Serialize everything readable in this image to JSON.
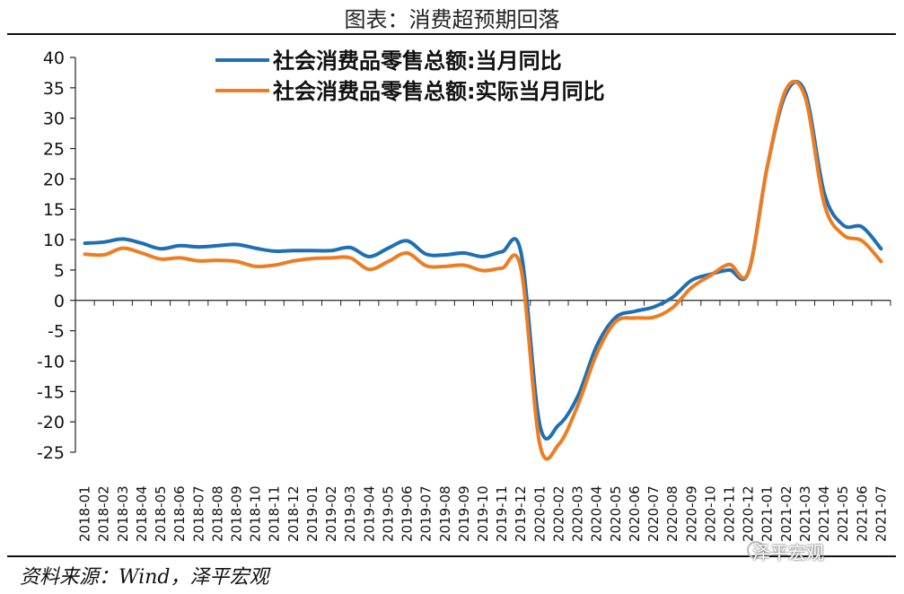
{
  "title": "图表：消费超预期回落",
  "source": "资料来源：Wind，泽平宏观",
  "watermark": "泽平宏观",
  "chart_data": {
    "type": "line",
    "title": "图表：消费超预期回落",
    "xlabel": "",
    "ylabel": "",
    "ylim": [
      -25,
      40
    ],
    "yticks": [
      40,
      35,
      30,
      25,
      20,
      15,
      10,
      5,
      0,
      -5,
      -10,
      -15,
      -20,
      -25
    ],
    "grid": false,
    "legend_position": "top-center",
    "categories": [
      "2018-01",
      "2018-02",
      "2018-03",
      "2018-04",
      "2018-05",
      "2018-06",
      "2018-07",
      "2018-08",
      "2018-09",
      "2018-10",
      "2018-11",
      "2018-12",
      "2019-01",
      "2019-02",
      "2019-03",
      "2019-04",
      "2019-05",
      "2019-06",
      "2019-07",
      "2019-08",
      "2019-09",
      "2019-10",
      "2019-11",
      "2019-12",
      "2020-01",
      "2020-02",
      "2020-03",
      "2020-04",
      "2020-05",
      "2020-06",
      "2020-07",
      "2020-08",
      "2020-09",
      "2020-10",
      "2020-11",
      "2020-12",
      "2021-01",
      "2021-02",
      "2021-03",
      "2021-04",
      "2021-05",
      "2021-06",
      "2021-07"
    ],
    "series": [
      {
        "name": "社会消费品零售总额:当月同比",
        "color": "#1F6FB5",
        "values": [
          9.4,
          9.6,
          10.1,
          9.4,
          8.5,
          9.0,
          8.8,
          9.0,
          9.2,
          8.6,
          8.1,
          8.2,
          8.2,
          8.2,
          8.7,
          7.2,
          8.6,
          9.8,
          7.6,
          7.5,
          7.8,
          7.2,
          8.0,
          8.0,
          -20.5,
          -20.5,
          -15.8,
          -7.5,
          -2.8,
          -1.8,
          -1.1,
          0.5,
          3.3,
          4.3,
          5.0,
          4.6,
          22.0,
          34.2,
          34.2,
          17.7,
          12.4,
          12.1,
          8.5
        ]
      },
      {
        "name": "社会消费品零售总额:实际当月同比",
        "color": "#EE7D22",
        "values": [
          7.6,
          7.5,
          8.6,
          7.8,
          6.8,
          7.0,
          6.5,
          6.6,
          6.4,
          5.6,
          5.8,
          6.5,
          6.9,
          7.0,
          7.0,
          5.1,
          6.4,
          7.8,
          5.7,
          5.6,
          5.8,
          4.9,
          5.3,
          5.3,
          -23.7,
          -23.7,
          -17.3,
          -8.8,
          -3.5,
          -2.9,
          -2.8,
          -1.2,
          2.1,
          4.1,
          5.9,
          4.6,
          22.0,
          34.8,
          33.4,
          15.9,
          10.8,
          9.8,
          6.4
        ]
      }
    ]
  }
}
